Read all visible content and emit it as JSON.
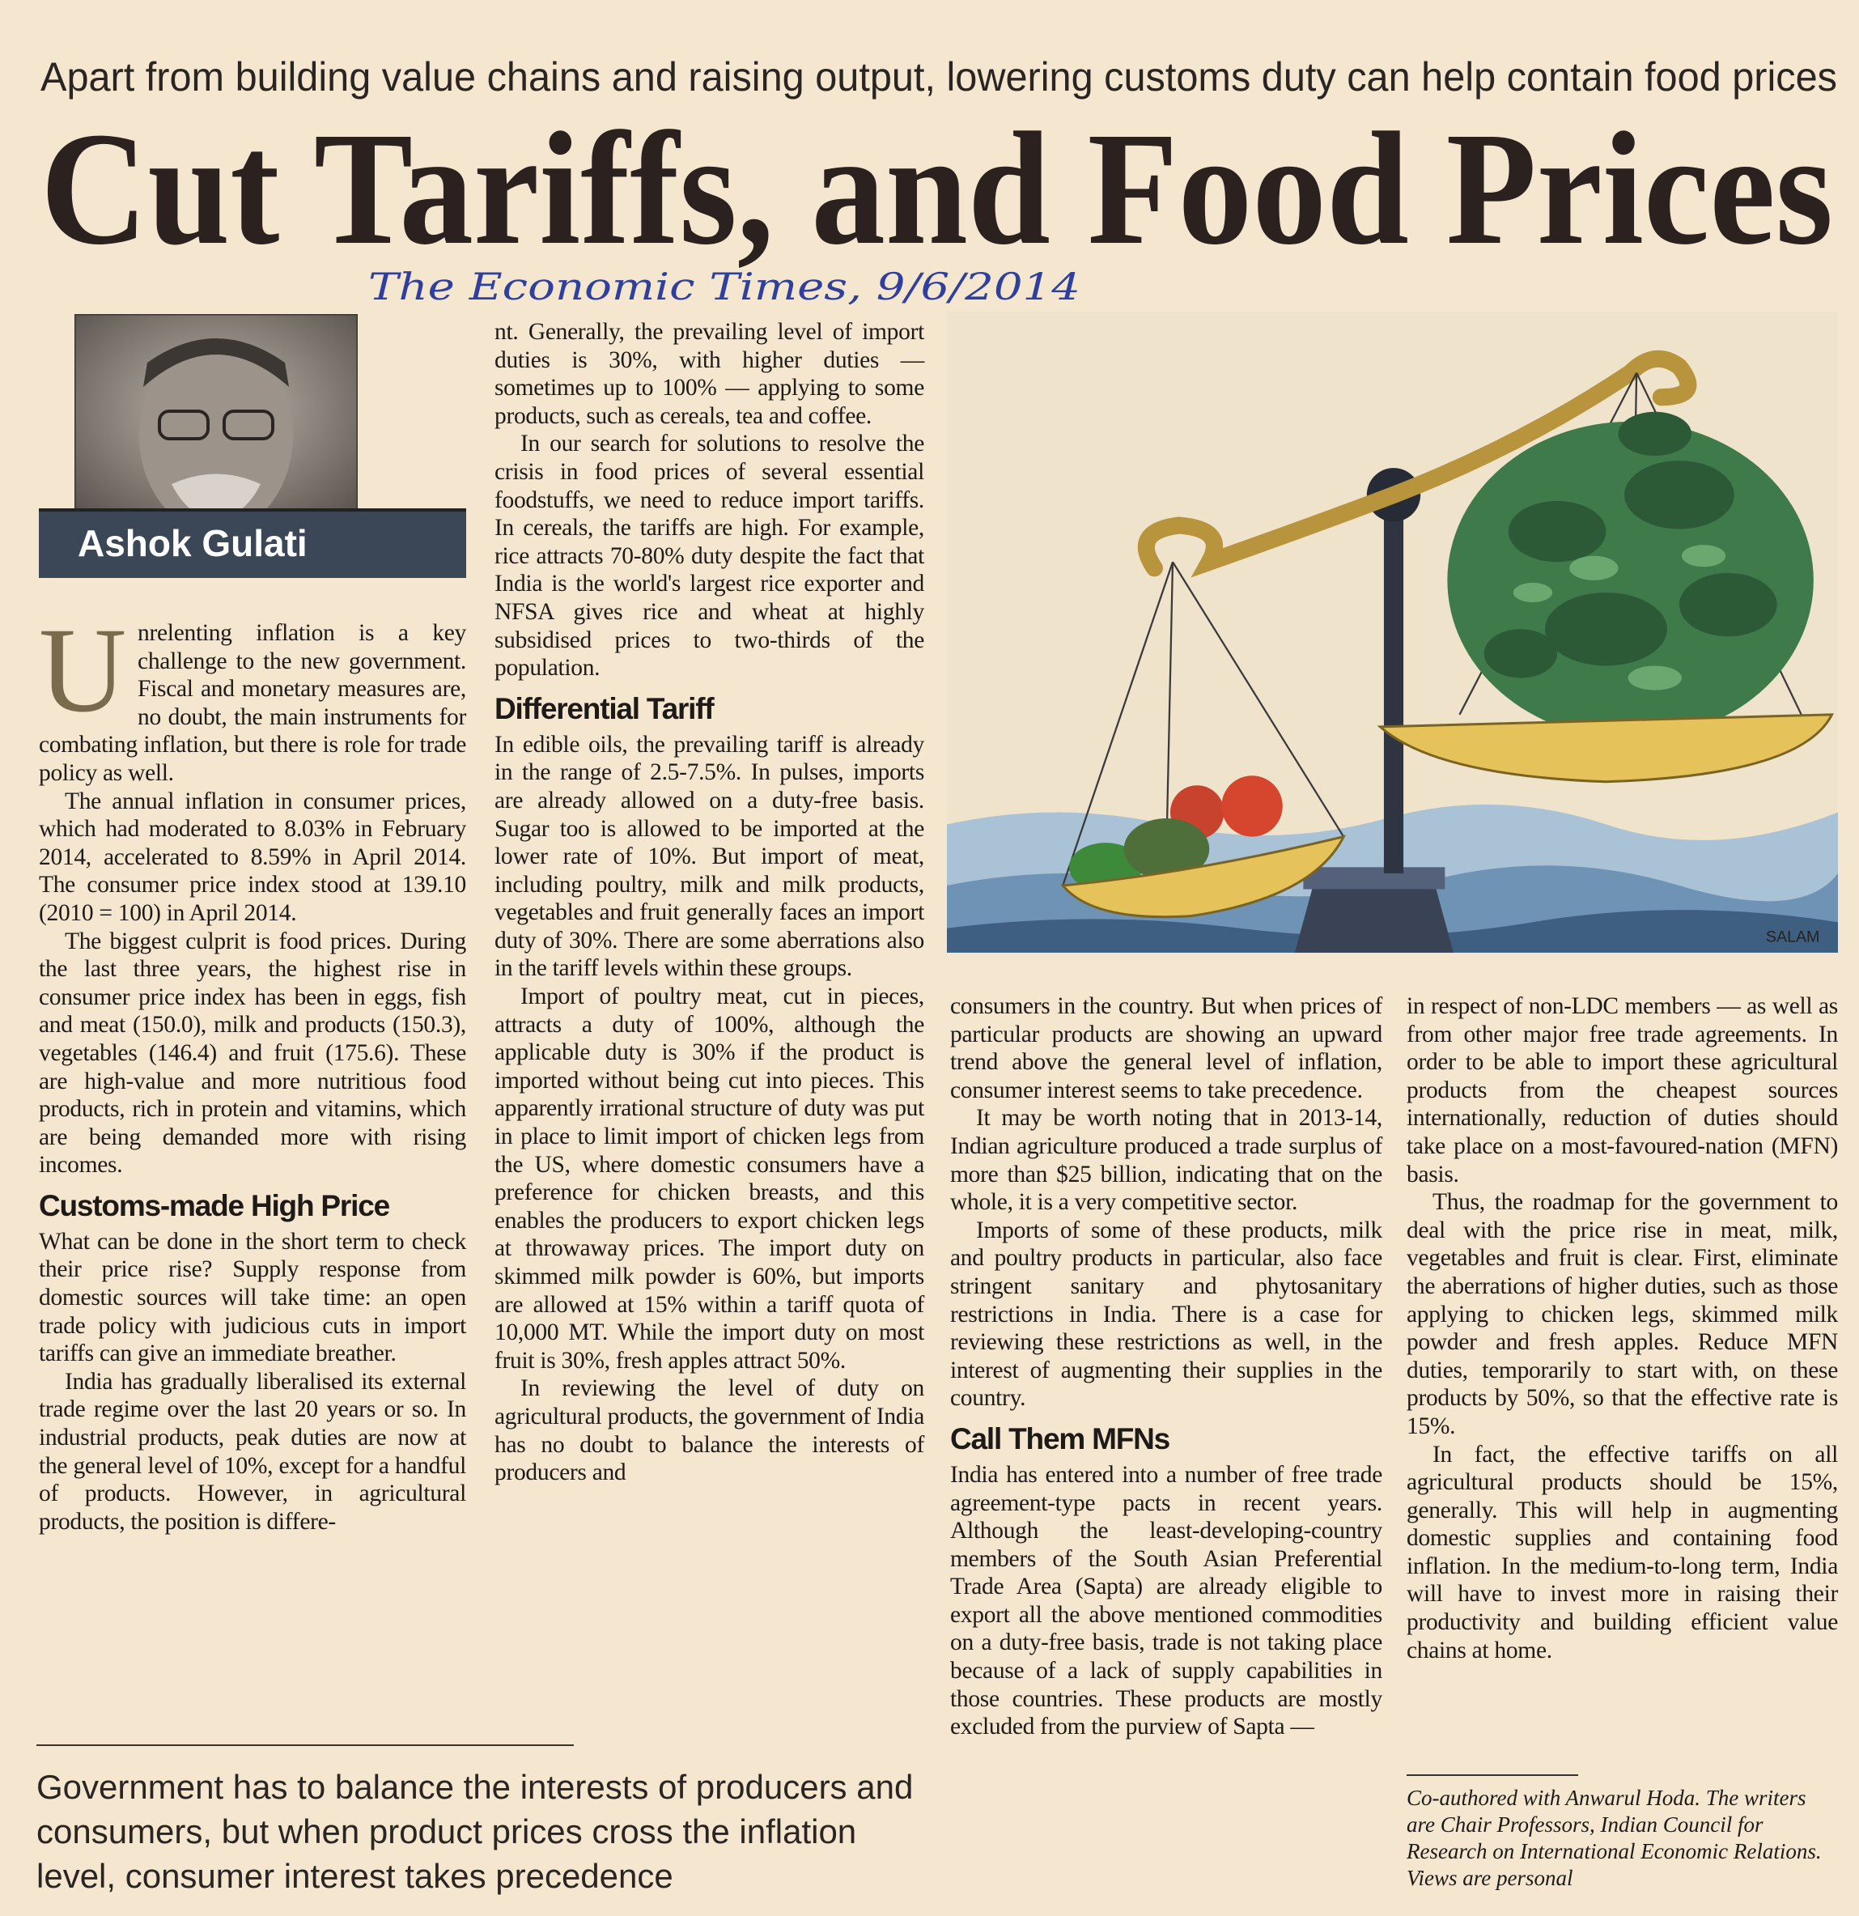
{
  "kicker": "Apart from building value chains and raising output, lowering customs duty can help contain food prices",
  "headline": "Cut Tariffs, and Food Prices",
  "handwritten_note": "The Economic Times, 9/6/2014",
  "author": "Ashok Gulati",
  "illustration_credit": "SALAM",
  "columns": [
    [
      "U",
      "nrelenting inflation is a key challenge to the new government. Fiscal and monetary measures are, no doubt, the main instruments for combating inflation, but there is role for trade policy as well.",
      "The annual inflation in consumer prices, which had moderated to 8.03% in February 2014, accelerated to 8.59% in April 2014. The consumer price index stood at 139.10 (2010 = 100) in April 2014.",
      "The biggest culprit is food prices. During the last three years, the highest rise in consumer price index has been in eggs, fish and meat (150.0), milk and products (150.3), vegetables (146.4) and fruit (175.6). These are high-value and more nutritious food products, rich in protein and vitamins, which are being demanded more with rising incomes.",
      "Customs-made High Price",
      "What can be done in the short term to check their price rise? Supply response from domestic sources will take time: an open trade policy with judicious cuts in import tariffs can give an immediate breather.",
      "India has gradually liberalised its external trade regime over the last 20 years or so. In industrial products, peak duties are now at the general level of 10%, except for a handful of products. However, in agricultural products, the position is differe-"
    ],
    [
      "nt. Generally, the prevailing level of import duties is 30%, with higher duties — sometimes up to 100% — applying to some products, such as cereals, tea and coffee.",
      "In our search for solutions to resolve the crisis in food prices of several essential foodstuffs, we need to reduce import tariffs. In cereals, the tariffs are high. For example, rice attracts 70-80% duty despite the fact that India is the world's largest rice exporter and NFSA gives rice and wheat at highly subsidised prices to two-thirds of the population.",
      "Differential Tariff",
      "In edible oils, the prevailing tariff is already in the range of 2.5-7.5%. In pulses, imports are already allowed on a duty-free basis. Sugar too is allowed to be imported at the lower rate of 10%. But import of meat, including poultry, milk and milk products, vegetables and fruit generally faces an import duty of 30%. There are some aberrations also in the tariff levels within these groups.",
      "Import of poultry meat, cut in pieces, attracts a duty of 100%, although the applicable duty is 30% if the product is imported without being cut into pieces. This apparently irrational structure of duty was put in place to limit import of chicken legs from the US, where domestic consumers have a preference for chicken breasts, and this enables the producers to export chicken legs at throwaway prices. The import duty on skimmed milk powder is 60%, but imports are allowed at 15% within a tariff quota of 10,000 MT. While the import duty on most fruit is 30%, fresh apples attract 50%.",
      "In reviewing the level of duty on agricultural products, the government of India has no doubt to balance the interests of producers and"
    ],
    [
      "consumers in the country. But when prices of particular products are showing an upward trend above the general level of inflation, consumer interest seems to take precedence.",
      "It may be worth noting that in 2013-14, Indian agriculture produced a trade surplus of more than $25 billion, indicating that on the whole, it is a very competitive sector.",
      "Imports of some of these products, milk and poultry products in particular, also face stringent sanitary and phytosanitary restrictions in India. There is a case for reviewing these restrictions as well, in the interest of augmenting their supplies in the country.",
      "Call Them MFNs",
      "India has entered into a number of free trade agreement-type pacts in recent years. Although the least-developing-country members of the South Asian Preferential Trade Area (Sapta) are already eligible to export all the above mentioned commodities on a duty-free basis, trade is not taking place because of a lack of supply capabilities in those countries. These products are mostly excluded from the purview of Sapta —"
    ],
    [
      "in respect of non-LDC members — as well as from other major free trade agreements. In order to be able to import these agricultural products from the cheapest sources internationally, reduction of duties should take place on a most-favoured-nation (MFN) basis.",
      "Thus, the roadmap for the government to deal with the price rise in meat, milk, vegetables and fruit is clear. First, eliminate the aberrations of higher duties, such as those applying to chicken legs, skimmed milk powder and fresh apples. Reduce MFN duties, temporarily to start with, on these products by 50%, so that the effective rate is 15%.",
      "In fact, the effective tariffs on all agricultural products should be 15%, generally. This will help in augmenting domestic supplies and containing food inflation. In the medium-to-long term, India will have to invest more in raising their productivity and building efficient value chains at home."
    ]
  ],
  "footnote": "Co-authored with Anwarul Hoda. The writers are Chair Professors, Indian Council for Research on International Economic Relations. Views are personal",
  "pull_quote": "Government has to balance the interests of producers and consumers, but when product prices cross the inflation level, consumer interest takes precedence"
}
